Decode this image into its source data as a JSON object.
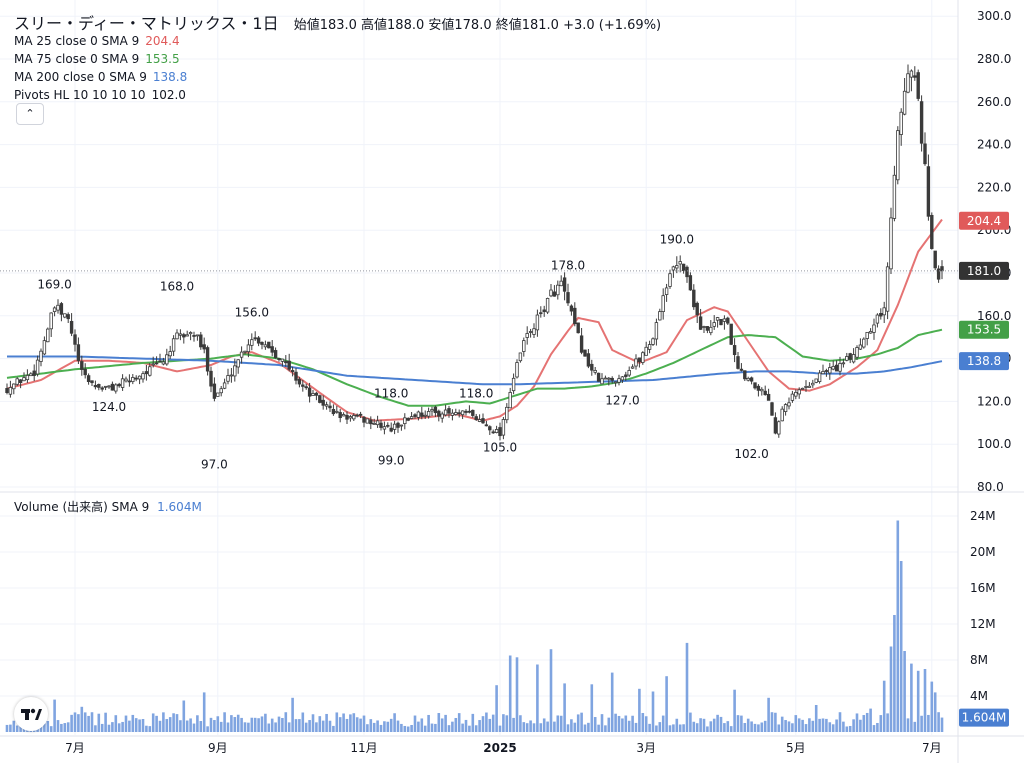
{
  "header": {
    "title": "スリー・ディー・マトリックス・1日",
    "ohlc": "始値183.0 高値188.0 安値178.0 終値181.0 +3.0 (+1.69%)"
  },
  "legend": {
    "ma25": {
      "label": "MA 25 close 0 SMA 9",
      "value": "204.4",
      "color": "#e05a5a"
    },
    "ma75": {
      "label": "MA 75 close 0 SMA 9",
      "value": "153.5",
      "color": "#43a047"
    },
    "ma200": {
      "label": "MA 200 close 0 SMA 9",
      "value": "138.8",
      "color": "#4a7fd1"
    },
    "pivots": {
      "label": "Pivots HL 10 10 10 10",
      "value": "102.0"
    },
    "collapse_icon": "chevron-up-icon"
  },
  "volume_legend": {
    "label": "Volume (出来高) SMA 9",
    "value": "1.604M"
  },
  "chart_data": {
    "type": "candlestick",
    "price_axis": {
      "ticks": [
        80,
        100,
        120,
        140,
        160,
        180,
        200,
        220,
        240,
        260,
        280,
        300
      ],
      "tick_labels": [
        "80.0",
        "100.0",
        "120.0",
        "140.0",
        "160.0",
        "180.0",
        "200.0",
        "220.0",
        "240.0",
        "260.0",
        "280.0",
        "300.0"
      ]
    },
    "volume_axis": {
      "ticks": [
        4,
        8,
        12,
        16,
        20,
        24
      ],
      "tick_labels": [
        "4M",
        "8M",
        "12M",
        "16M",
        "20M",
        "24M"
      ]
    },
    "x_axis": {
      "labels": [
        "7月",
        "9月",
        "11月",
        "2025",
        "3月",
        "5月",
        "7月"
      ],
      "day_index": [
        20,
        62,
        105,
        145,
        188,
        232,
        272
      ]
    },
    "last_price": "181.0",
    "price_tags": [
      {
        "label": "204.4",
        "value": 204.4,
        "color": "#e05a5a"
      },
      {
        "label": "181.0",
        "value": 181.0,
        "color": "#333333"
      },
      {
        "label": "153.5",
        "value": 153.5,
        "color": "#43a047"
      },
      {
        "label": "138.8",
        "value": 138.8,
        "color": "#4a7fd1"
      },
      {
        "label": "1.604M",
        "value": 1.604,
        "color": "#4a7fd1",
        "axis": "volume"
      }
    ],
    "pivots": [
      {
        "label": "169.0",
        "day": 14,
        "value": 169,
        "kind": "high"
      },
      {
        "label": "168.0",
        "day": 50,
        "value": 168,
        "kind": "high"
      },
      {
        "label": "156.0",
        "day": 72,
        "value": 156,
        "kind": "high"
      },
      {
        "label": "124.0",
        "day": 30,
        "value": 124,
        "kind": "low"
      },
      {
        "label": "97.0",
        "day": 61,
        "value": 97,
        "kind": "low"
      },
      {
        "label": "118.0",
        "day": 113,
        "value": 118,
        "kind": "high"
      },
      {
        "label": "118.0",
        "day": 138,
        "value": 118,
        "kind": "high"
      },
      {
        "label": "99.0",
        "day": 113,
        "value": 99,
        "kind": "low"
      },
      {
        "label": "105.0",
        "day": 145,
        "value": 105,
        "kind": "low"
      },
      {
        "label": "178.0",
        "day": 165,
        "value": 178,
        "kind": "high"
      },
      {
        "label": "190.0",
        "day": 197,
        "value": 190,
        "kind": "high"
      },
      {
        "label": "127.0",
        "day": 181,
        "value": 127,
        "kind": "low"
      },
      {
        "label": "102.0",
        "day": 219,
        "value": 102,
        "kind": "low"
      }
    ],
    "close_keypoints": [
      [
        0,
        126
      ],
      [
        8,
        134
      ],
      [
        14,
        164
      ],
      [
        18,
        158
      ],
      [
        22,
        133
      ],
      [
        26,
        127
      ],
      [
        30,
        126
      ],
      [
        36,
        130
      ],
      [
        42,
        135
      ],
      [
        46,
        139
      ],
      [
        50,
        150
      ],
      [
        55,
        152
      ],
      [
        58,
        143
      ],
      [
        61,
        122
      ],
      [
        64,
        128
      ],
      [
        68,
        140
      ],
      [
        72,
        150
      ],
      [
        76,
        147
      ],
      [
        80,
        141
      ],
      [
        84,
        133
      ],
      [
        88,
        125
      ],
      [
        92,
        120
      ],
      [
        98,
        113
      ],
      [
        104,
        112
      ],
      [
        108,
        110
      ],
      [
        113,
        107
      ],
      [
        116,
        110
      ],
      [
        120,
        114
      ],
      [
        126,
        115
      ],
      [
        132,
        114
      ],
      [
        136,
        114
      ],
      [
        140,
        110
      ],
      [
        143,
        107
      ],
      [
        145,
        105
      ],
      [
        148,
        125
      ],
      [
        152,
        148
      ],
      [
        156,
        158
      ],
      [
        160,
        170
      ],
      [
        163,
        175
      ],
      [
        166,
        160
      ],
      [
        170,
        140
      ],
      [
        174,
        130
      ],
      [
        178,
        130
      ],
      [
        182,
        133
      ],
      [
        186,
        140
      ],
      [
        190,
        150
      ],
      [
        193,
        170
      ],
      [
        196,
        182
      ],
      [
        198,
        187
      ],
      [
        201,
        172
      ],
      [
        204,
        155
      ],
      [
        206,
        152
      ],
      [
        209,
        158
      ],
      [
        212,
        157
      ],
      [
        214,
        140
      ],
      [
        216,
        134
      ],
      [
        220,
        128
      ],
      [
        224,
        122
      ],
      [
        226,
        106
      ],
      [
        228,
        118
      ],
      [
        232,
        124
      ],
      [
        236,
        128
      ],
      [
        240,
        134
      ],
      [
        244,
        136
      ],
      [
        248,
        140
      ],
      [
        252,
        150
      ],
      [
        256,
        160
      ],
      [
        258,
        162
      ],
      [
        260,
        205
      ],
      [
        262,
        250
      ],
      [
        264,
        268
      ],
      [
        266,
        274
      ],
      [
        268,
        262
      ],
      [
        269,
        240
      ],
      [
        270,
        228
      ],
      [
        271,
        205
      ],
      [
        272,
        190
      ],
      [
        273,
        183
      ],
      [
        274,
        178
      ],
      [
        275,
        181
      ]
    ],
    "ma25_keypoints": [
      [
        0,
        126
      ],
      [
        10,
        130
      ],
      [
        20,
        139
      ],
      [
        30,
        139
      ],
      [
        40,
        138
      ],
      [
        50,
        134
      ],
      [
        60,
        137
      ],
      [
        66,
        141
      ],
      [
        72,
        143
      ],
      [
        80,
        138
      ],
      [
        86,
        131
      ],
      [
        92,
        124
      ],
      [
        100,
        115
      ],
      [
        108,
        111
      ],
      [
        120,
        112
      ],
      [
        132,
        114
      ],
      [
        140,
        111
      ],
      [
        145,
        113
      ],
      [
        150,
        118
      ],
      [
        155,
        127
      ],
      [
        160,
        142
      ],
      [
        165,
        153
      ],
      [
        168,
        159
      ],
      [
        174,
        157
      ],
      [
        178,
        144
      ],
      [
        186,
        138
      ],
      [
        194,
        143
      ],
      [
        200,
        158
      ],
      [
        208,
        164
      ],
      [
        212,
        162
      ],
      [
        218,
        148
      ],
      [
        224,
        134
      ],
      [
        230,
        126
      ],
      [
        236,
        125
      ],
      [
        242,
        128
      ],
      [
        250,
        136
      ],
      [
        256,
        144
      ],
      [
        262,
        165
      ],
      [
        268,
        190
      ],
      [
        275,
        205
      ]
    ],
    "ma75_keypoints": [
      [
        0,
        131
      ],
      [
        20,
        135
      ],
      [
        40,
        138
      ],
      [
        60,
        140
      ],
      [
        70,
        142
      ],
      [
        80,
        140
      ],
      [
        90,
        135
      ],
      [
        100,
        128
      ],
      [
        110,
        122
      ],
      [
        118,
        118
      ],
      [
        126,
        118
      ],
      [
        135,
        120
      ],
      [
        142,
        119
      ],
      [
        148,
        122
      ],
      [
        156,
        126
      ],
      [
        164,
        126
      ],
      [
        172,
        127
      ],
      [
        180,
        129
      ],
      [
        188,
        133
      ],
      [
        196,
        138
      ],
      [
        204,
        144
      ],
      [
        212,
        150
      ],
      [
        218,
        151
      ],
      [
        226,
        150
      ],
      [
        234,
        141
      ],
      [
        242,
        139
      ],
      [
        250,
        140
      ],
      [
        256,
        142
      ],
      [
        262,
        145
      ],
      [
        268,
        151
      ],
      [
        275,
        153.5
      ]
    ],
    "ma200_keypoints": [
      [
        0,
        141
      ],
      [
        20,
        141
      ],
      [
        40,
        140
      ],
      [
        60,
        139
      ],
      [
        70,
        138
      ],
      [
        80,
        137
      ],
      [
        100,
        132
      ],
      [
        120,
        130
      ],
      [
        140,
        128
      ],
      [
        150,
        128
      ],
      [
        170,
        129
      ],
      [
        190,
        130
      ],
      [
        210,
        133
      ],
      [
        220,
        134
      ],
      [
        230,
        134
      ],
      [
        240,
        133
      ],
      [
        250,
        133
      ],
      [
        258,
        134
      ],
      [
        266,
        136
      ],
      [
        275,
        138.8
      ]
    ],
    "volume_spikes": [
      [
        14,
        3.6
      ],
      [
        22,
        2.8
      ],
      [
        52,
        3.5
      ],
      [
        58,
        4.4
      ],
      [
        84,
        3.8
      ],
      [
        144,
        5.2
      ],
      [
        148,
        8.5
      ],
      [
        150,
        8.3
      ],
      [
        156,
        7.5
      ],
      [
        160,
        9.2
      ],
      [
        164,
        5.4
      ],
      [
        172,
        5.3
      ],
      [
        178,
        6.6
      ],
      [
        186,
        4.8
      ],
      [
        190,
        4.5
      ],
      [
        194,
        6.2
      ],
      [
        200,
        9.9
      ],
      [
        214,
        4.7
      ],
      [
        224,
        3.8
      ],
      [
        238,
        3.0
      ],
      [
        254,
        2.6
      ],
      [
        258,
        5.7
      ],
      [
        260,
        9.5
      ],
      [
        261,
        13.0
      ],
      [
        262,
        23.5
      ],
      [
        263,
        19.0
      ],
      [
        264,
        9.0
      ],
      [
        266,
        7.6
      ],
      [
        268,
        6.8
      ],
      [
        270,
        7.0
      ],
      [
        272,
        5.6
      ],
      [
        273,
        4.4
      ],
      [
        274,
        2.2
      ],
      [
        275,
        1.604
      ]
    ]
  }
}
